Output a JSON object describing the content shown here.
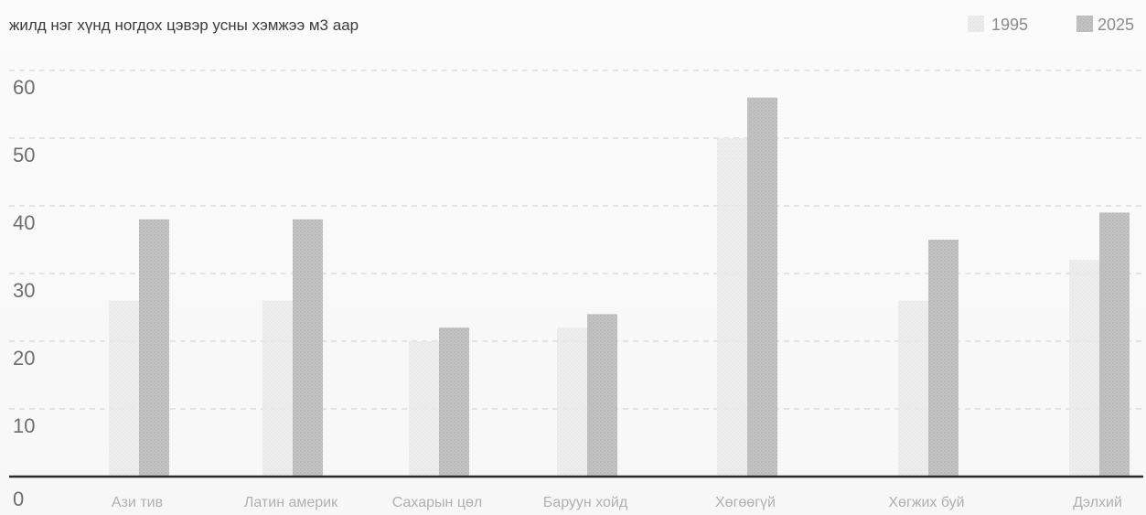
{
  "chart_data": {
    "type": "bar",
    "title": "жилд нэг хүнд ногдох цэвэр усны хэмжээ м3 аар",
    "xlabel": "",
    "ylabel": "",
    "ylim": [
      0,
      60
    ],
    "yticks": [
      0,
      10,
      20,
      30,
      40,
      50,
      60
    ],
    "grid": true,
    "legend_position": "top-right",
    "categories": [
      "Ази тив",
      "Латин америк",
      "Сахарын цөл",
      "Баруун хойд",
      "Хөгөөгүй",
      "Хөгжих буй",
      "Дэлхий"
    ],
    "series": [
      {
        "name": "1995",
        "color": "#e6e6e6",
        "values": [
          26,
          26,
          20,
          22,
          50,
          26,
          32
        ]
      },
      {
        "name": "2025",
        "color": "#bdbdbd",
        "values": [
          38,
          38,
          22,
          24,
          56,
          35,
          39
        ]
      }
    ]
  }
}
